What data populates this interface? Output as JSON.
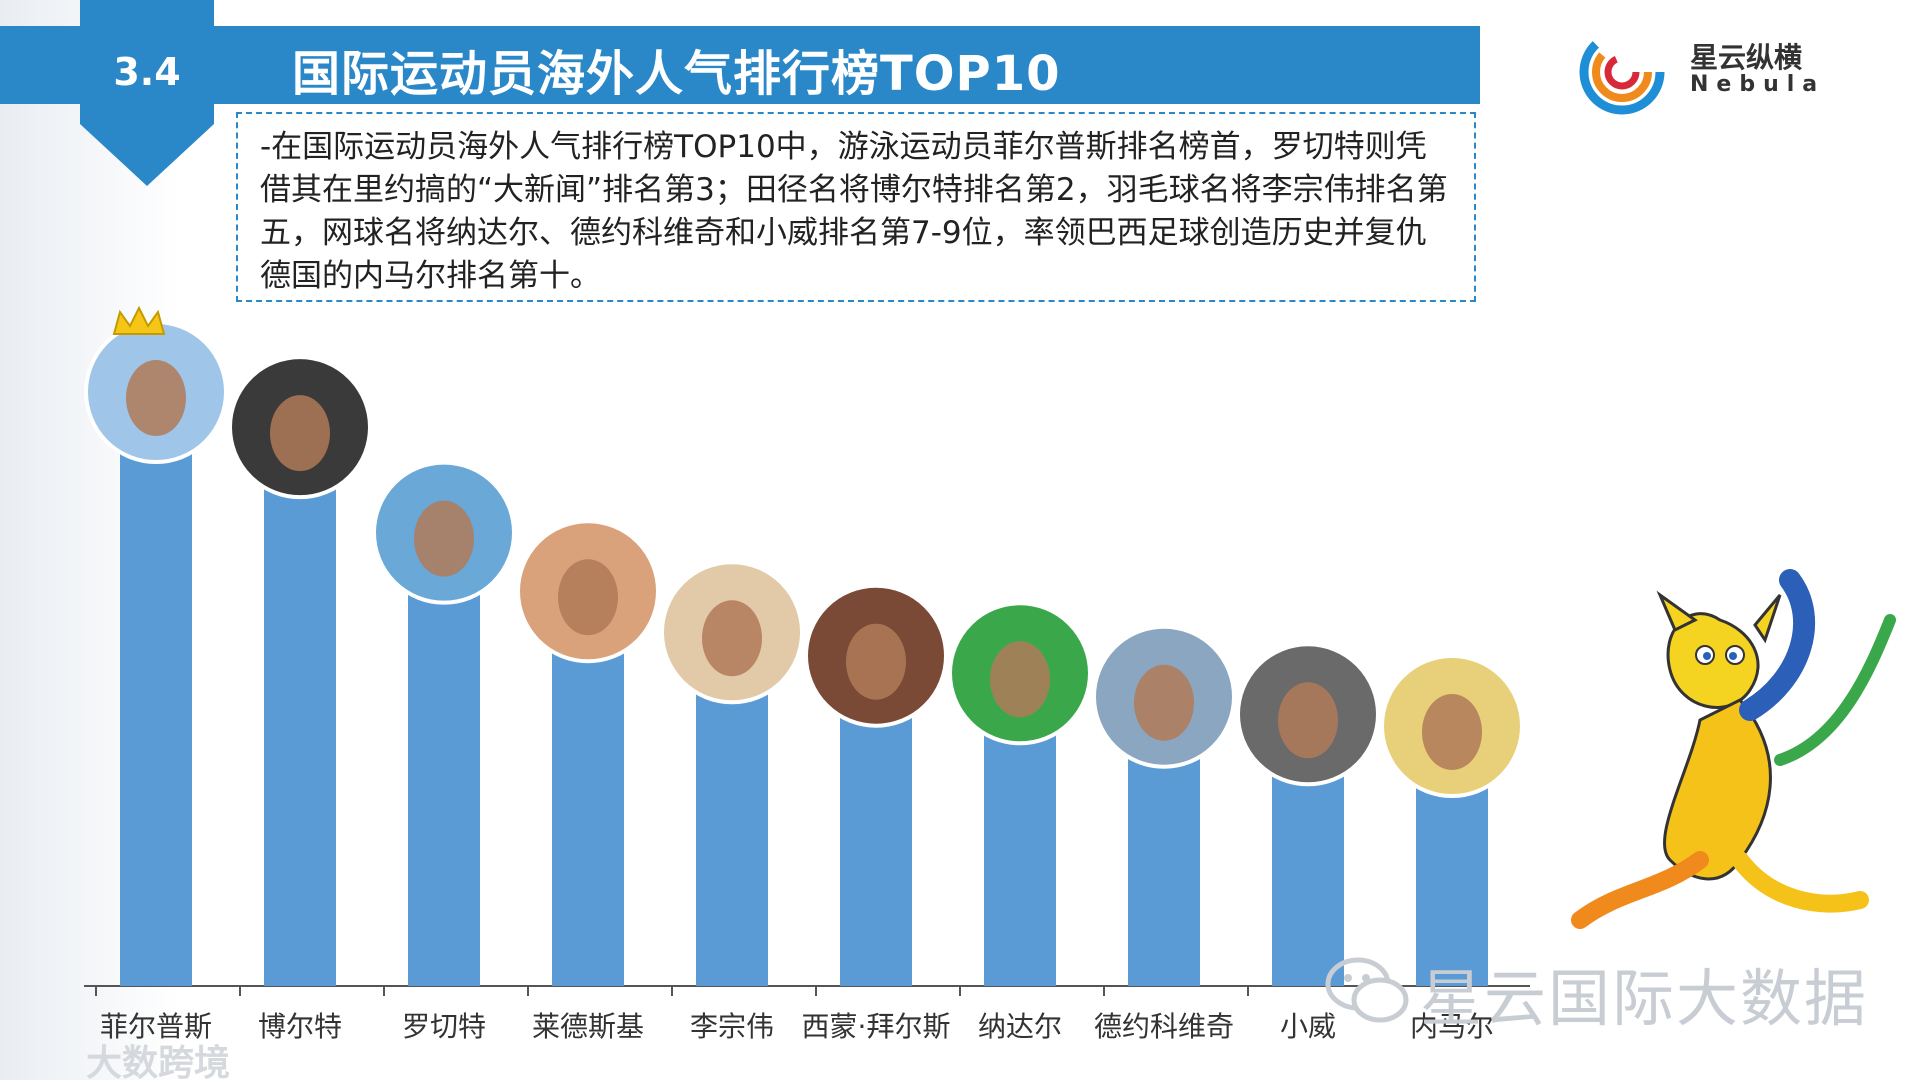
{
  "header": {
    "section_number": "3.4",
    "title": "国际运动员海外人气排行榜TOP10"
  },
  "logo": {
    "name_cn": "星云纵横",
    "name_en": "Nebula"
  },
  "description": "-在国际运动员海外人气排行榜TOP10中，游泳运动员菲尔普斯排名榜首，罗切特则凭借其在里约搞的“大新闻”排名第3；田径名将博尔特排名第2，羽毛球名将李宗伟排名第五，网球名将纳达尔、德约科维奇和小威排名第7-9位，率领巴西足球创造历史并复仇德国的内马尔排名第十。",
  "chart_data": {
    "type": "bar",
    "categories": [
      "菲尔普斯",
      "博尔特",
      "罗切特",
      "莱德斯基",
      "李宗伟",
      "西蒙·拜尔斯",
      "纳达尔",
      "德约科维奇",
      "小威",
      "内马尔"
    ],
    "values": [
      100,
      94,
      76,
      66,
      59,
      55,
      52,
      48,
      45,
      43
    ],
    "bar_color": "#5b9bd5",
    "grid": false,
    "legend": "none"
  },
  "watermark": {
    "text": "星云国际大数据",
    "bottom_left": "大数跨境"
  }
}
